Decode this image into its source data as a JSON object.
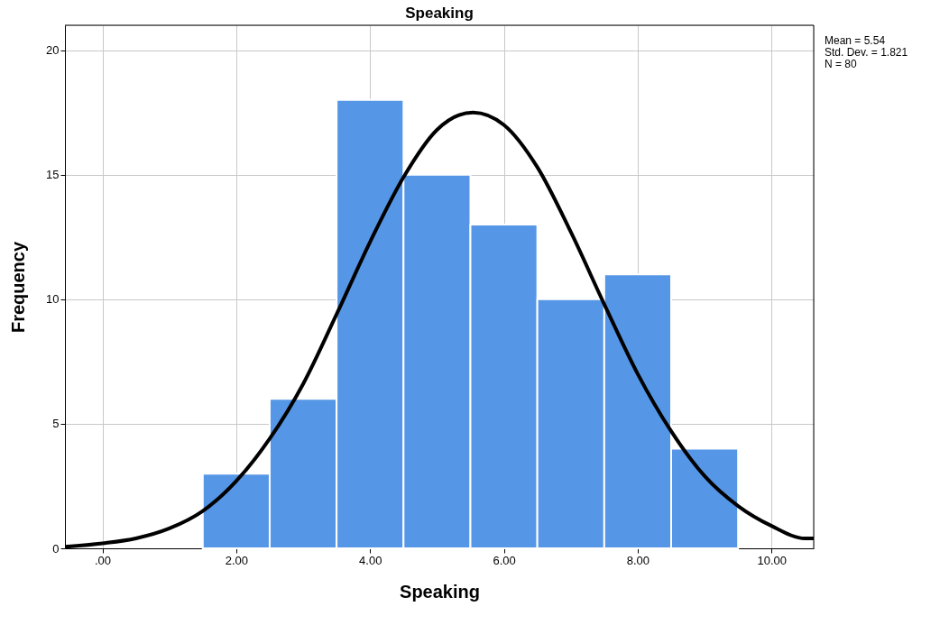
{
  "chart_data": {
    "type": "histogram",
    "title": "Speaking",
    "xlabel": "Speaking",
    "ylabel": "Frequency",
    "bins": [
      1.5,
      2.5,
      3.5,
      4.5,
      5.5,
      6.5,
      7.5,
      8.5,
      9.5
    ],
    "values": [
      3,
      6,
      18,
      15,
      13,
      10,
      11,
      4
    ],
    "color": "#5596e6",
    "series": [
      {
        "type": "line",
        "color": "#000000",
        "x": [
          -0.56,
          0,
          0.5,
          1,
          1.5,
          2,
          2.5,
          3,
          3.5,
          4,
          4.5,
          5,
          5.54,
          6,
          6.5,
          7,
          7.5,
          8,
          8.5,
          9,
          9.5,
          10,
          10.5,
          10.63
        ],
        "values": [
          0.06,
          0.2,
          0.4,
          0.8,
          1.5,
          2.7,
          4.4,
          6.6,
          9.4,
          12.3,
          14.9,
          16.8,
          17.5,
          17.0,
          15.3,
          12.7,
          9.8,
          7.0,
          4.7,
          2.9,
          1.7,
          0.9,
          0.4,
          0.4
        ]
      }
    ],
    "xlim": [
      -0.56,
      10.63
    ],
    "ylim": [
      0,
      21
    ],
    "xticks": [
      {
        "value": 0,
        "label": ".00"
      },
      {
        "value": 2,
        "label": "2.00"
      },
      {
        "value": 4,
        "label": "4.00"
      },
      {
        "value": 6,
        "label": "6.00"
      },
      {
        "value": 8,
        "label": "8.00"
      },
      {
        "value": 10,
        "label": "10.00"
      }
    ],
    "yticks": [
      0,
      5,
      10,
      15,
      20
    ],
    "grid": true,
    "annotations": [
      "Mean = 5.54",
      "Std. Dev. = 1.821",
      "N = 80"
    ]
  }
}
